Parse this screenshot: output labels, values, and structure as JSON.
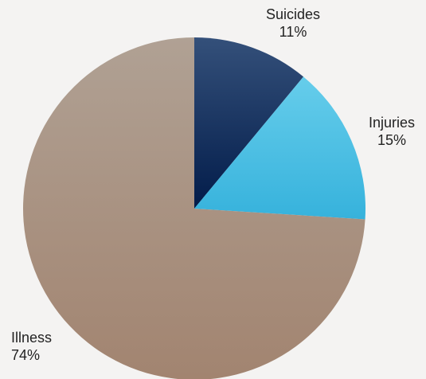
{
  "chart_data": {
    "type": "pie",
    "title": "",
    "slices": [
      {
        "label": "Suicides",
        "value": 11,
        "display": "11%",
        "color": "#0f2a55"
      },
      {
        "label": "Injuries",
        "value": 15,
        "display": "15%",
        "color": "#4ec3e6"
      },
      {
        "label": "Illness",
        "value": 74,
        "display": "74%",
        "color": "#a99080"
      }
    ],
    "start_angle": "12 o'clock",
    "direction": "clockwise",
    "legend": "none"
  }
}
